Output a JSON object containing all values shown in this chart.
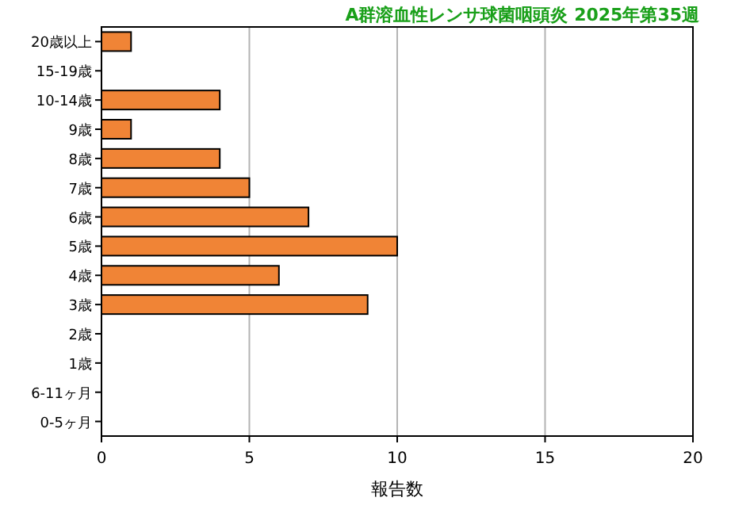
{
  "chart_data": {
    "type": "bar",
    "orientation": "horizontal",
    "title": "A群溶血性レンサ球菌咽頭炎 2025年第35週",
    "xlabel": "報告数",
    "categories": [
      "20歳以上",
      "15-19歳",
      "10-14歳",
      "9歳",
      "8歳",
      "7歳",
      "6歳",
      "5歳",
      "4歳",
      "3歳",
      "2歳",
      "1歳",
      "6-11ヶ月",
      "0-5ヶ月"
    ],
    "values": [
      1,
      0,
      4,
      1,
      4,
      5,
      7,
      10,
      6,
      9,
      0,
      0,
      0,
      0
    ],
    "color": "#f08436",
    "xlim": [
      0,
      20
    ],
    "xticks": [
      0,
      5,
      10,
      15,
      20
    ],
    "grid": "x"
  }
}
